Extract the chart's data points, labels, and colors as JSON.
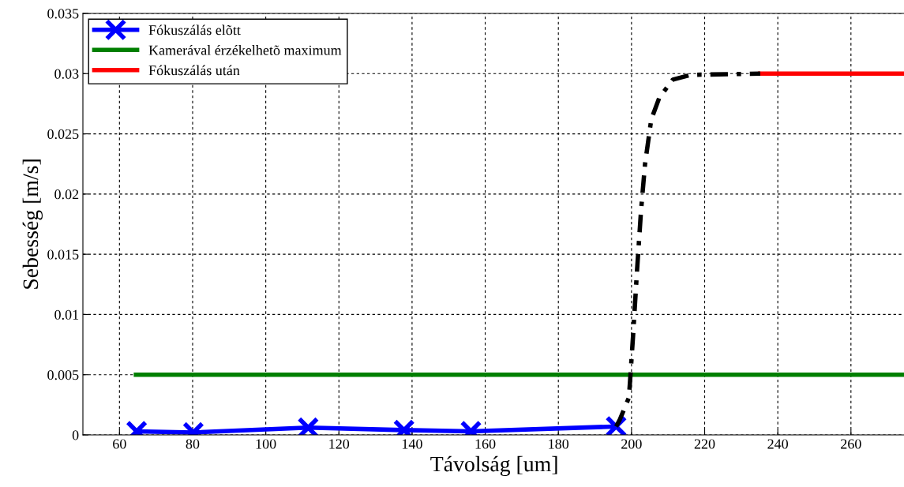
{
  "chart_data": {
    "type": "line",
    "xlabel": "Távolság [um]",
    "ylabel": "Sebesség [m/s]",
    "xlim": [
      50,
      275
    ],
    "xticks": [
      60,
      80,
      100,
      120,
      140,
      160,
      180,
      200,
      220,
      240,
      260
    ],
    "ylim": [
      0,
      0.035
    ],
    "yticks": [
      0,
      0.005,
      0.01,
      0.015,
      0.02,
      0.025,
      0.03,
      0.035
    ],
    "grid": true,
    "legend": "top left",
    "series": [
      {
        "name": "Fókuszálás elõtt",
        "color": "#0000ff",
        "marker": "cross",
        "line_style": "solid",
        "x": [
          64.7,
          80.2,
          111.6,
          137.8,
          156.1,
          195.8
        ],
        "values": [
          0.0003,
          0.0002,
          0.0006,
          0.0004,
          0.0003,
          0.0007
        ]
      },
      {
        "name": "Kamerával érzékelhetõ maximum",
        "color": "#007f00",
        "marker": "none",
        "line_style": "solid",
        "x": [
          64.5,
          275
        ],
        "values": [
          0.005,
          0.005
        ]
      },
      {
        "name": "Fókuszálás után",
        "color": "#ff0000",
        "marker": "none",
        "line_style": "solid",
        "x": [
          235.2,
          275
        ],
        "values": [
          0.03,
          0.03
        ]
      },
      {
        "color": "#000000",
        "marker": "none",
        "line_style": "dashdot",
        "x": [
          195.8,
          196.7,
          199.3,
          200.4,
          201.5,
          202.6,
          203.7,
          205.4,
          207.6,
          211.3,
          216.3,
          235.2
        ],
        "values": [
          0.0007,
          0.0012,
          0.0031,
          0.0081,
          0.0136,
          0.0186,
          0.0225,
          0.0262,
          0.028,
          0.0295,
          0.0299,
          0.03
        ]
      }
    ]
  }
}
